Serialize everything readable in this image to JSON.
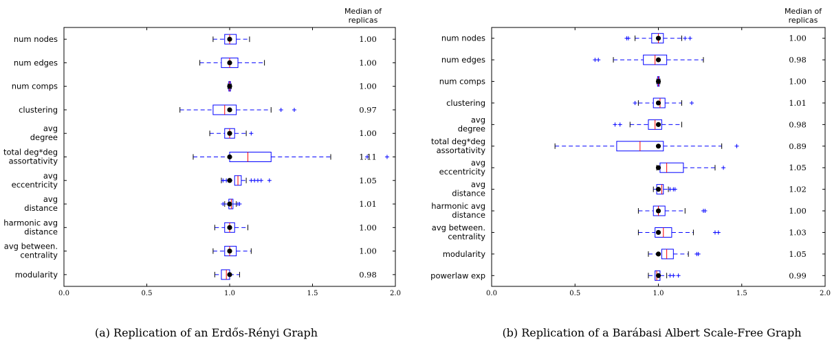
{
  "chart_data": [
    {
      "type": "boxplot",
      "caption": "(a) Replication of an Erdős-Rényi Graph",
      "median_header": [
        "Median of",
        "replicas"
      ],
      "xlim": [
        0.0,
        2.0
      ],
      "xticks": [
        "0.0",
        "0.5",
        "1.0",
        "1.5",
        "2.0"
      ],
      "rows": [
        {
          "label": [
            "num nodes"
          ],
          "whislo": 0.9,
          "q1": 0.97,
          "med": 1.0,
          "q3": 1.04,
          "whishi": 1.12,
          "mean": 1.0,
          "outliers": [],
          "median_text": "1.00"
        },
        {
          "label": [
            "num edges"
          ],
          "whislo": 0.82,
          "q1": 0.95,
          "med": 1.0,
          "q3": 1.05,
          "whishi": 1.21,
          "mean": 1.0,
          "outliers": [],
          "median_text": "1.00"
        },
        {
          "label": [
            "num comps"
          ],
          "whislo": 0.99,
          "q1": 0.995,
          "med": 1.0,
          "q3": 1.005,
          "whishi": 1.01,
          "mean": 1.0,
          "outliers": [],
          "median_text": "1.00"
        },
        {
          "label": [
            "clustering"
          ],
          "whislo": 0.7,
          "q1": 0.9,
          "med": 0.97,
          "q3": 1.04,
          "whishi": 1.25,
          "mean": 1.0,
          "outliers": [
            1.31,
            1.39
          ],
          "median_text": "0.97"
        },
        {
          "label": [
            "avg",
            "degree"
          ],
          "whislo": 0.88,
          "q1": 0.97,
          "med": 1.0,
          "q3": 1.03,
          "whishi": 1.1,
          "mean": 1.0,
          "outliers": [
            1.13
          ],
          "median_text": "1.00"
        },
        {
          "label": [
            "total deg*deg",
            "assortativity"
          ],
          "whislo": 0.78,
          "q1": 1.0,
          "med": 1.11,
          "q3": 1.25,
          "whishi": 1.61,
          "mean": 1.0,
          "outliers": [
            1.83,
            1.95
          ],
          "median_text": "1.11"
        },
        {
          "label": [
            "avg",
            "eccentricity"
          ],
          "whislo": 0.95,
          "q1": 1.03,
          "med": 1.05,
          "q3": 1.07,
          "whishi": 1.1,
          "mean": 1.0,
          "outliers": [
            0.96,
            0.98,
            1.13,
            1.15,
            1.17,
            1.19,
            1.24
          ],
          "median_text": "1.05"
        },
        {
          "label": [
            "avg",
            "distance"
          ],
          "whislo": 0.97,
          "q1": 0.995,
          "med": 1.01,
          "q3": 1.02,
          "whishi": 1.04,
          "mean": 1.0,
          "outliers": [
            0.96,
            1.05,
            1.06
          ],
          "median_text": "1.01"
        },
        {
          "label": [
            "harmonic avg",
            "distance"
          ],
          "whislo": 0.91,
          "q1": 0.97,
          "med": 1.0,
          "q3": 1.03,
          "whishi": 1.11,
          "mean": 1.0,
          "outliers": [],
          "median_text": "1.00"
        },
        {
          "label": [
            "avg between.",
            "centrality"
          ],
          "whislo": 0.9,
          "q1": 0.97,
          "med": 1.0,
          "q3": 1.04,
          "whishi": 1.13,
          "mean": 1.0,
          "outliers": [],
          "median_text": "1.00"
        },
        {
          "label": [
            "modularity"
          ],
          "whislo": 0.91,
          "q1": 0.95,
          "med": 0.98,
          "q3": 1.0,
          "whishi": 1.06,
          "mean": 1.0,
          "outliers": [],
          "median_text": "0.98"
        }
      ]
    },
    {
      "type": "boxplot",
      "caption": "(b) Replication of a Barábasi Albert Scale-Free Graph",
      "median_header": [
        "Median of",
        "replicas"
      ],
      "xlim": [
        0.0,
        2.0
      ],
      "xticks": [
        "0.0",
        "0.5",
        "1.0",
        "1.5",
        "2.0"
      ],
      "rows": [
        {
          "label": [
            "num nodes"
          ],
          "whislo": 0.86,
          "q1": 0.96,
          "med": 1.0,
          "q3": 1.03,
          "whishi": 1.14,
          "mean": 1.0,
          "outliers": [
            0.81,
            0.82,
            1.16,
            1.19
          ],
          "median_text": "1.00"
        },
        {
          "label": [
            "num edges"
          ],
          "whislo": 0.73,
          "q1": 0.91,
          "med": 0.98,
          "q3": 1.05,
          "whishi": 1.27,
          "mean": 1.0,
          "outliers": [
            0.62,
            0.64
          ],
          "median_text": "0.98"
        },
        {
          "label": [
            "num comps"
          ],
          "whislo": 0.99,
          "q1": 0.995,
          "med": 1.0,
          "q3": 1.005,
          "whishi": 1.01,
          "mean": 1.0,
          "outliers": [],
          "median_text": "1.00"
        },
        {
          "label": [
            "clustering"
          ],
          "whislo": 0.88,
          "q1": 0.97,
          "med": 1.01,
          "q3": 1.04,
          "whishi": 1.14,
          "mean": 1.0,
          "outliers": [
            0.86,
            1.2
          ],
          "median_text": "1.01"
        },
        {
          "label": [
            "avg",
            "degree"
          ],
          "whislo": 0.83,
          "q1": 0.94,
          "med": 0.98,
          "q3": 1.02,
          "whishi": 1.14,
          "mean": 1.0,
          "outliers": [
            0.74,
            0.77
          ],
          "median_text": "0.98"
        },
        {
          "label": [
            "total deg*deg",
            "assortativity"
          ],
          "whislo": 0.38,
          "q1": 0.75,
          "med": 0.89,
          "q3": 1.03,
          "whishi": 1.38,
          "mean": 1.0,
          "outliers": [
            1.47
          ],
          "median_text": "0.89"
        },
        {
          "label": [
            "avg",
            "eccentricity"
          ],
          "whislo": 0.99,
          "q1": 1.01,
          "med": 1.05,
          "q3": 1.15,
          "whishi": 1.34,
          "mean": 1.0,
          "outliers": [
            1.39
          ],
          "median_text": "1.05"
        },
        {
          "label": [
            "avg",
            "distance"
          ],
          "whislo": 0.97,
          "q1": 0.99,
          "med": 1.02,
          "q3": 1.03,
          "whishi": 1.06,
          "mean": 1.0,
          "outliers": [
            1.07,
            1.09,
            1.1
          ],
          "median_text": "1.02"
        },
        {
          "label": [
            "harmonic avg",
            "distance"
          ],
          "whislo": 0.88,
          "q1": 0.97,
          "med": 1.0,
          "q3": 1.04,
          "whishi": 1.16,
          "mean": 1.0,
          "outliers": [
            1.27,
            1.28
          ],
          "median_text": "1.00"
        },
        {
          "label": [
            "avg between.",
            "centrality"
          ],
          "whislo": 0.88,
          "q1": 0.98,
          "med": 1.03,
          "q3": 1.08,
          "whishi": 1.21,
          "mean": 1.0,
          "outliers": [
            1.34,
            1.36
          ],
          "median_text": "1.03"
        },
        {
          "label": [
            "modularity"
          ],
          "whislo": 0.94,
          "q1": 1.02,
          "med": 1.05,
          "q3": 1.09,
          "whishi": 1.18,
          "mean": 1.0,
          "outliers": [
            1.23,
            1.24
          ],
          "median_text": "1.05"
        },
        {
          "label": [
            "powerlaw exp"
          ],
          "whislo": 0.94,
          "q1": 0.98,
          "med": 0.99,
          "q3": 1.01,
          "whishi": 1.05,
          "mean": 1.0,
          "outliers": [
            1.07,
            1.09,
            1.12
          ],
          "median_text": "0.99"
        }
      ]
    }
  ]
}
